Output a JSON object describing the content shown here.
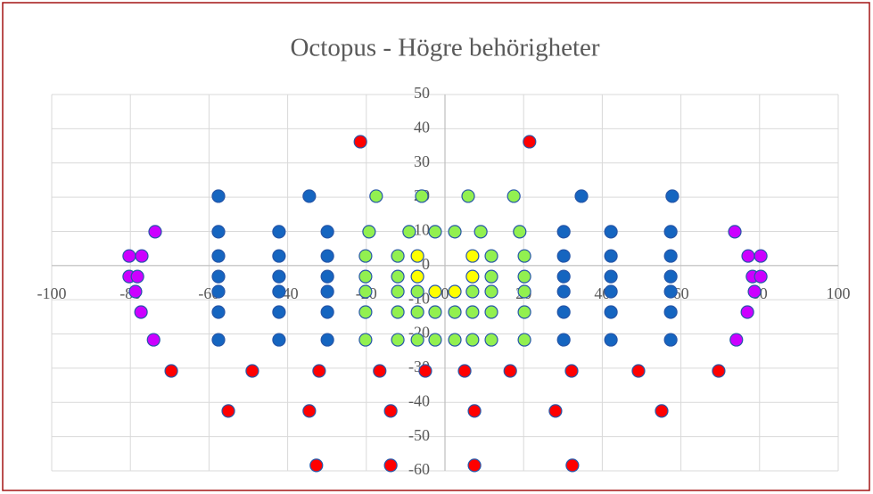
{
  "chart_data": {
    "type": "scatter",
    "title": "Octopus - Högre behörigheter",
    "xlim": [
      -100,
      100
    ],
    "ylim": [
      -60,
      50
    ],
    "xticks": [
      -100,
      -80,
      -60,
      -40,
      -20,
      0,
      20,
      40,
      60,
      80,
      100
    ],
    "yticks": [
      -60,
      -50,
      -40,
      -30,
      -20,
      -10,
      0,
      10,
      20,
      30,
      40,
      50
    ],
    "grid": true,
    "series": [
      {
        "color": "#1565c0",
        "x": [
          -57.6,
          -34.5,
          34.7,
          57.8,
          -57.6,
          -42.2,
          -29.9,
          30.2,
          42.2,
          57.4,
          -57.6,
          -42.2,
          -29.9,
          30.2,
          42.2,
          57.4,
          -57.6,
          -42.2,
          -29.9,
          30.2,
          42.2,
          57.4,
          -57.6,
          -42.2,
          -29.9,
          30.2,
          42.2,
          57.4,
          -57.6,
          -42.2,
          -29.9,
          30.2,
          42.2,
          57.4,
          -57.6,
          -42.2,
          -29.9,
          30.2,
          42.2,
          57.4
        ],
        "values": [
          20.3,
          20.3,
          20.3,
          20.3,
          9.9,
          9.9,
          9.9,
          9.9,
          9.9,
          9.9,
          2.8,
          2.8,
          2.8,
          2.8,
          2.8,
          2.8,
          -3.2,
          -3.2,
          -3.2,
          -3.2,
          -3.2,
          -3.2,
          -7.6,
          -7.6,
          -7.6,
          -7.6,
          -7.6,
          -7.6,
          -13.6,
          -13.6,
          -13.6,
          -13.6,
          -13.6,
          -13.6,
          -21.7,
          -21.7,
          -21.7,
          -21.7,
          -21.7,
          -21.7
        ]
      },
      {
        "color": "#92f050",
        "x": [
          -17.5,
          -5.9,
          5.9,
          17.5,
          -19.3,
          -9.1,
          -2.5,
          2.5,
          9.1,
          19.0,
          -20.2,
          -12,
          11.8,
          20.2,
          -20.2,
          -12,
          11.8,
          20.2,
          -20.2,
          -12,
          -7,
          7,
          11.8,
          20.2,
          -20.2,
          -12,
          -7,
          -2.5,
          2.5,
          7,
          11.8,
          20.2,
          -20.2,
          -12,
          -7,
          -2.5,
          2.5,
          7,
          11.8,
          20.2
        ],
        "values": [
          20.3,
          20.3,
          20.3,
          20.3,
          9.9,
          9.9,
          9.9,
          9.9,
          9.9,
          9.9,
          2.8,
          2.8,
          2.8,
          2.8,
          -3.2,
          -3.2,
          -3.2,
          -3.2,
          -7.6,
          -7.6,
          -7.6,
          -7.6,
          -7.6,
          -7.6,
          -13.6,
          -13.6,
          -13.6,
          -13.6,
          -13.6,
          -13.6,
          -13.6,
          -13.6,
          -21.7,
          -21.7,
          -21.7,
          -21.7,
          -21.7,
          -21.7,
          -21.7,
          -21.7
        ]
      },
      {
        "color": "#ffff00",
        "x": [
          -7,
          7,
          -7,
          7,
          -2.5,
          2.5
        ],
        "values": [
          2.8,
          2.8,
          -3.2,
          -3.2,
          -7.6,
          -7.6
        ]
      },
      {
        "color": "#cc00ff",
        "x": [
          -73.7,
          73.7,
          -80.3,
          -77.1,
          77.1,
          80.3,
          -80.3,
          -78.2,
          78.2,
          80.3,
          -78.7,
          78.7,
          -77.3,
          76.9,
          -74.1,
          74.1
        ],
        "values": [
          9.9,
          9.9,
          2.8,
          2.8,
          2.8,
          2.8,
          -3.2,
          -3.2,
          -3.2,
          -3.2,
          -7.6,
          -7.6,
          -13.6,
          -13.6,
          -21.7,
          -21.7
        ]
      },
      {
        "color": "#ff0000",
        "x": [
          -21.5,
          21.5,
          -69.6,
          -49,
          -32,
          -16.6,
          -5,
          5,
          16.6,
          32.2,
          49.2,
          69.6,
          -55.1,
          -34.5,
          -13.8,
          7.5,
          28.1,
          55.1,
          -32.7,
          -13.8,
          7.5,
          32.4
        ],
        "values": [
          36.2,
          36.2,
          -30.8,
          -30.8,
          -30.8,
          -30.8,
          -30.8,
          -30.8,
          -30.8,
          -30.8,
          -30.8,
          -30.8,
          -42.5,
          -42.5,
          -42.5,
          -42.5,
          -42.5,
          -42.5,
          -58.4,
          -58.4,
          -58.4,
          -58.4
        ]
      }
    ]
  }
}
